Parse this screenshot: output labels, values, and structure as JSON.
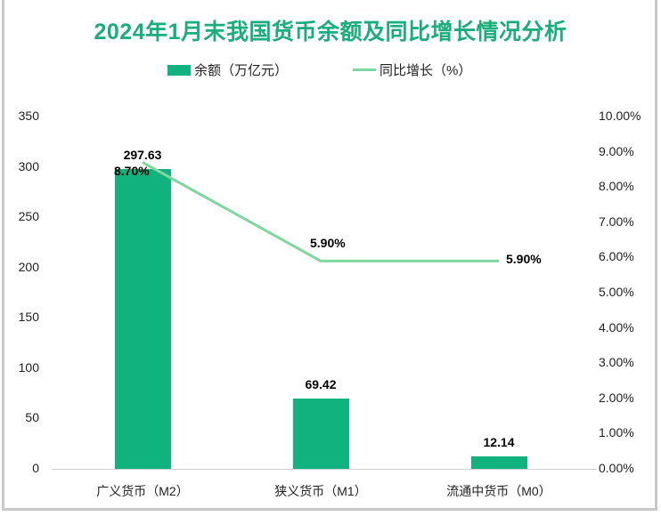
{
  "chart_data": {
    "type": "bar+line",
    "title": "2024年1月末我国货币余额及同比增长情况分析",
    "categories": [
      "广义货币（M2）",
      "狭义货币（M1）",
      "流通中货币（M0）"
    ],
    "series": [
      {
        "name": "余额（万亿元）",
        "type": "bar",
        "axis": "left",
        "color": "#10b27e",
        "values": [
          297.63,
          69.42,
          12.14
        ],
        "labels": [
          "297.63",
          "69.42",
          "12.14"
        ]
      },
      {
        "name": "同比增长（%）",
        "type": "line",
        "axis": "right",
        "color": "#7fd79f",
        "values": [
          8.7,
          5.9,
          5.9
        ],
        "labels": [
          "8.70%",
          "5.90%",
          "5.90%"
        ]
      }
    ],
    "y_left": {
      "ylim": [
        0,
        350
      ],
      "ticks": [
        "0",
        "50",
        "100",
        "150",
        "200",
        "250",
        "300",
        "350"
      ]
    },
    "y_right": {
      "ylim": [
        0,
        10
      ],
      "ticks": [
        "0.00%",
        "1.00%",
        "2.00%",
        "3.00%",
        "4.00%",
        "5.00%",
        "6.00%",
        "7.00%",
        "8.00%",
        "9.00%",
        "10.00%"
      ]
    },
    "grid": false,
    "legend_position": "top"
  },
  "legend": {
    "bar": "余额（万亿元）",
    "line": "同比增长（%）"
  }
}
